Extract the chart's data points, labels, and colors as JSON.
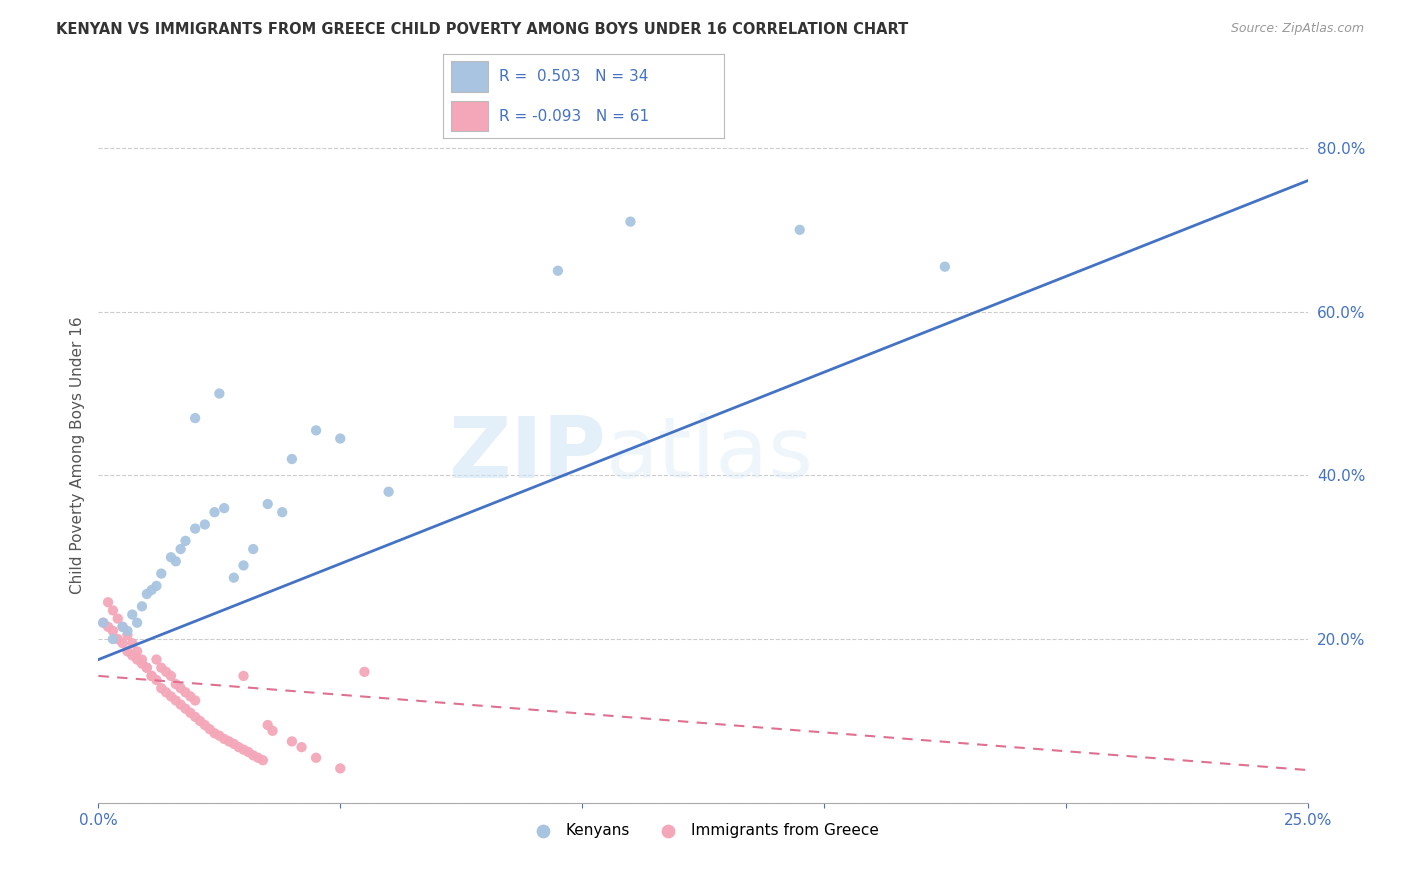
{
  "title": "KENYAN VS IMMIGRANTS FROM GREECE CHILD POVERTY AMONG BOYS UNDER 16 CORRELATION CHART",
  "source": "Source: ZipAtlas.com",
  "ylabel": "Child Poverty Among Boys Under 16",
  "xlim": [
    0.0,
    0.25
  ],
  "ylim": [
    0.0,
    0.85
  ],
  "xticks": [
    0.0,
    0.05,
    0.1,
    0.15,
    0.2,
    0.25
  ],
  "yticks": [
    0.0,
    0.2,
    0.4,
    0.6,
    0.8
  ],
  "ytick_labels": [
    "",
    "20.0%",
    "40.0%",
    "60.0%",
    "80.0%"
  ],
  "xtick_labels": [
    "0.0%",
    "",
    "",
    "",
    "",
    "25.0%"
  ],
  "kenyan_R": "0.503",
  "kenyan_N": "34",
  "greece_R": "-0.093",
  "greece_N": "61",
  "kenyan_color": "#a8c4e0",
  "greece_color": "#f4a7b9",
  "kenyan_line_color": "#4472c4",
  "greece_line_color": "#e07090",
  "watermark_zip": "ZIP",
  "watermark_atlas": "atlas",
  "kenyan_line_x0": 0.0,
  "kenyan_line_y0": 0.175,
  "kenyan_line_x1": 0.25,
  "kenyan_line_y1": 0.76,
  "greece_line_x0": 0.0,
  "greece_line_y0": 0.155,
  "greece_line_x1": 0.25,
  "greece_line_y1": 0.04,
  "kenyan_scatter_x": [
    0.001,
    0.003,
    0.005,
    0.006,
    0.007,
    0.008,
    0.009,
    0.01,
    0.011,
    0.012,
    0.013,
    0.015,
    0.016,
    0.017,
    0.018,
    0.02,
    0.022,
    0.024,
    0.026,
    0.028,
    0.03,
    0.032,
    0.035,
    0.038,
    0.04,
    0.045,
    0.05,
    0.06,
    0.02,
    0.025,
    0.095,
    0.11,
    0.145,
    0.175
  ],
  "kenyan_scatter_y": [
    0.22,
    0.2,
    0.215,
    0.21,
    0.23,
    0.22,
    0.24,
    0.255,
    0.26,
    0.265,
    0.28,
    0.3,
    0.295,
    0.31,
    0.32,
    0.335,
    0.34,
    0.355,
    0.36,
    0.275,
    0.29,
    0.31,
    0.365,
    0.355,
    0.42,
    0.455,
    0.445,
    0.38,
    0.47,
    0.5,
    0.65,
    0.71,
    0.7,
    0.655
  ],
  "greece_scatter_x": [
    0.001,
    0.002,
    0.003,
    0.004,
    0.005,
    0.006,
    0.007,
    0.008,
    0.009,
    0.01,
    0.011,
    0.012,
    0.013,
    0.014,
    0.015,
    0.016,
    0.017,
    0.018,
    0.019,
    0.02,
    0.002,
    0.003,
    0.004,
    0.005,
    0.006,
    0.007,
    0.008,
    0.009,
    0.01,
    0.011,
    0.012,
    0.013,
    0.014,
    0.015,
    0.016,
    0.017,
    0.018,
    0.019,
    0.02,
    0.021,
    0.022,
    0.023,
    0.024,
    0.025,
    0.026,
    0.027,
    0.028,
    0.029,
    0.03,
    0.031,
    0.032,
    0.033,
    0.034,
    0.035,
    0.036,
    0.04,
    0.042,
    0.045,
    0.05,
    0.055,
    0.03
  ],
  "greece_scatter_y": [
    0.22,
    0.215,
    0.21,
    0.2,
    0.195,
    0.185,
    0.18,
    0.175,
    0.17,
    0.165,
    0.155,
    0.175,
    0.165,
    0.16,
    0.155,
    0.145,
    0.14,
    0.135,
    0.13,
    0.125,
    0.245,
    0.235,
    0.225,
    0.215,
    0.205,
    0.195,
    0.185,
    0.175,
    0.165,
    0.155,
    0.15,
    0.14,
    0.135,
    0.13,
    0.125,
    0.12,
    0.115,
    0.11,
    0.105,
    0.1,
    0.095,
    0.09,
    0.085,
    0.082,
    0.078,
    0.075,
    0.072,
    0.068,
    0.065,
    0.062,
    0.058,
    0.055,
    0.052,
    0.095,
    0.088,
    0.075,
    0.068,
    0.055,
    0.042,
    0.16,
    0.155
  ]
}
